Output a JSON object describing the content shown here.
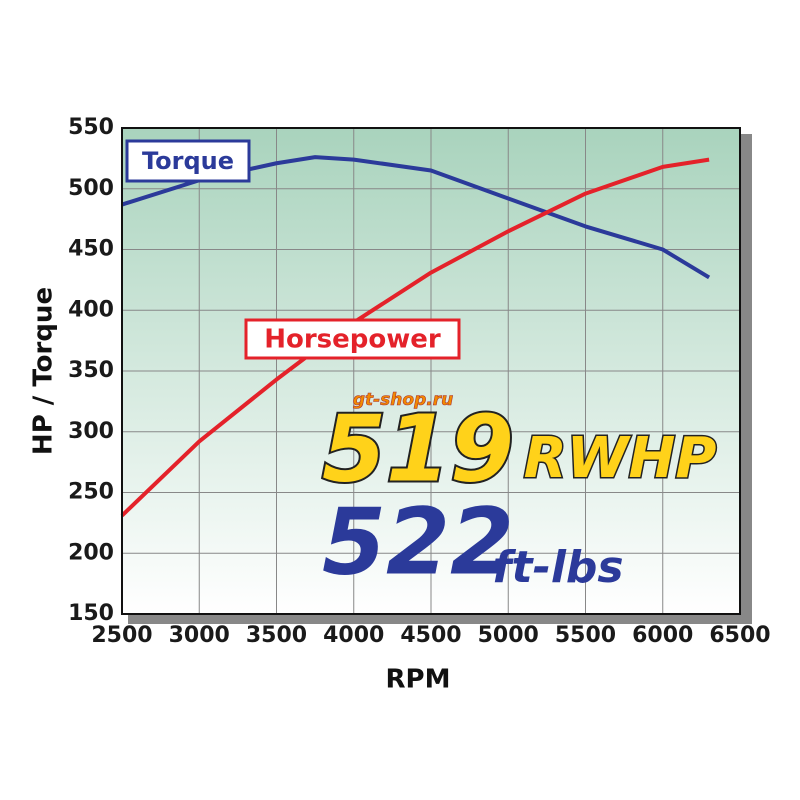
{
  "chart_data": {
    "type": "line",
    "x_label": "RPM",
    "y_label": "HP / Torque",
    "x": [
      2500,
      3000,
      3500,
      3750,
      4000,
      4500,
      5000,
      5500,
      6000,
      6300
    ],
    "series": [
      {
        "name": "Torque",
        "color": "#2b3a9a",
        "values": [
          487,
          507,
          521,
          526,
          524,
          515,
          492,
          469,
          450,
          427
        ]
      },
      {
        "name": "Horsepower",
        "color": "#e4222a",
        "values": [
          231,
          292,
          343,
          367,
          390,
          431,
          465,
          496,
          518,
          524
        ]
      }
    ],
    "xlim": [
      2500,
      6500
    ],
    "xticks": [
      2500,
      3000,
      3500,
      4000,
      4500,
      5000,
      5500,
      6000,
      6500
    ],
    "ylim": [
      150,
      550
    ],
    "yticks": [
      150,
      200,
      250,
      300,
      350,
      400,
      450,
      500,
      550
    ],
    "grid": true,
    "annotations": {
      "watermark": "gt-shop.ru",
      "hp_value": "519",
      "hp_unit": "RWHP",
      "tq_value": "522",
      "tq_unit": "ft-lbs"
    }
  }
}
